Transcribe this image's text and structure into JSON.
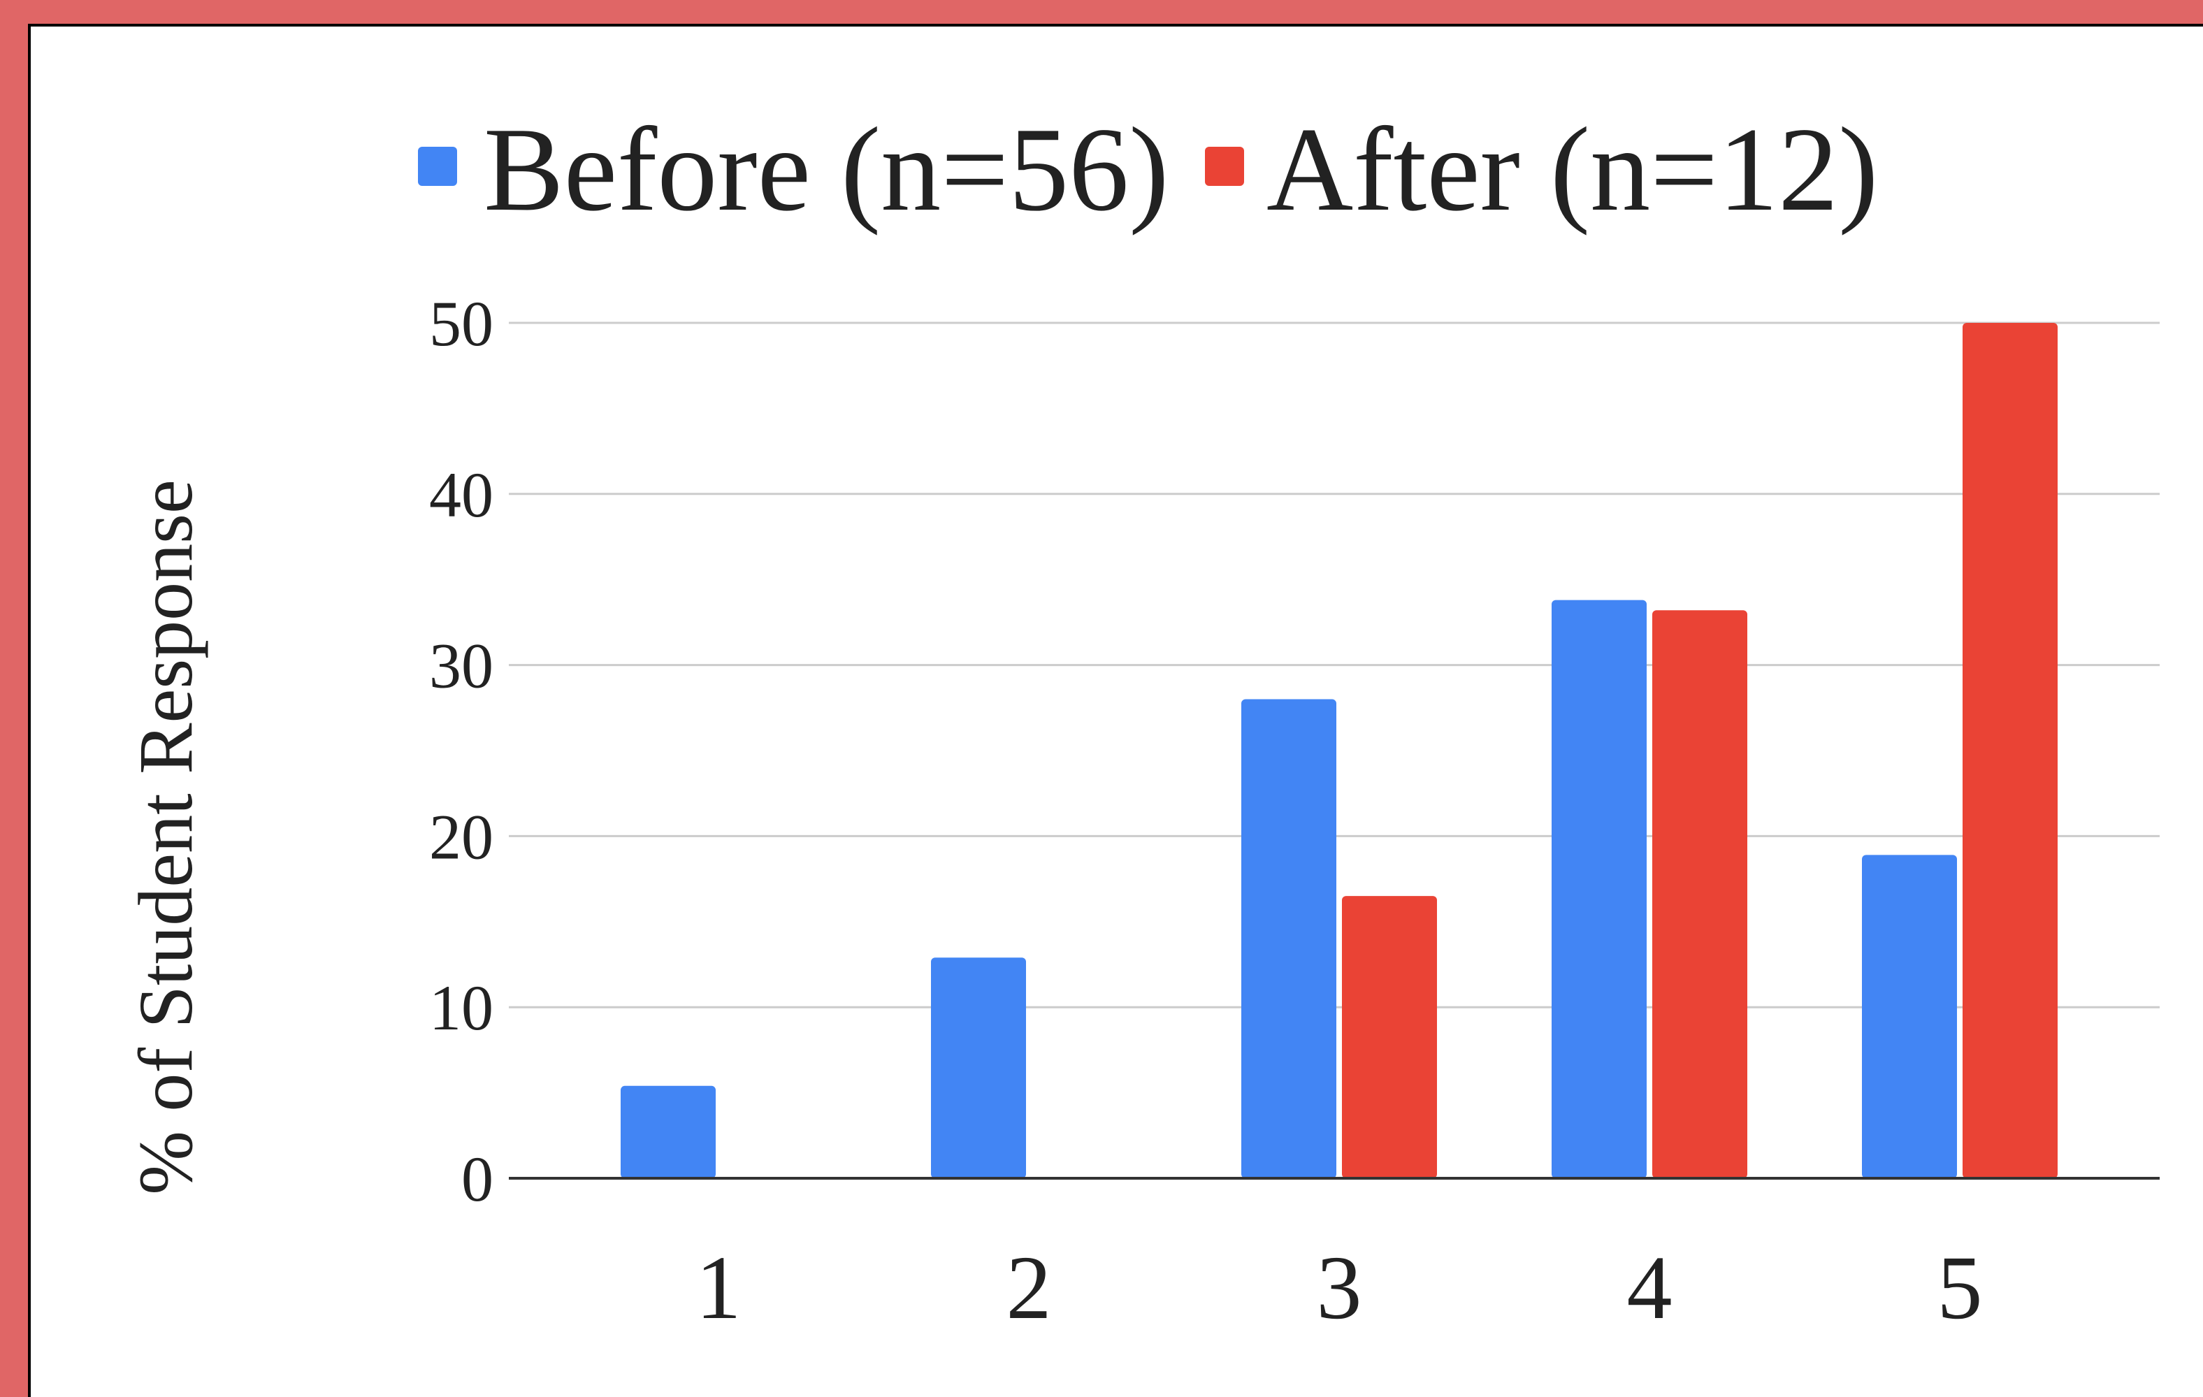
{
  "chart_data": {
    "type": "bar",
    "title": "",
    "xlabel": "",
    "ylabel": "% of Student Response",
    "categories": [
      "1",
      "2",
      "3",
      "4",
      "5"
    ],
    "series": [
      {
        "name": "Before (n=56)",
        "color": "#4285f4",
        "values": [
          5.4,
          12.9,
          28.0,
          33.8,
          18.9
        ]
      },
      {
        "name": "After (n=12)",
        "color": "#ea4335",
        "values": [
          0,
          0,
          16.5,
          33.2,
          50.0
        ]
      }
    ],
    "ylim": [
      0,
      50
    ],
    "yticks": [
      "0",
      "10",
      "20",
      "30",
      "40",
      "50"
    ],
    "grid": true,
    "legend_position": "top"
  }
}
